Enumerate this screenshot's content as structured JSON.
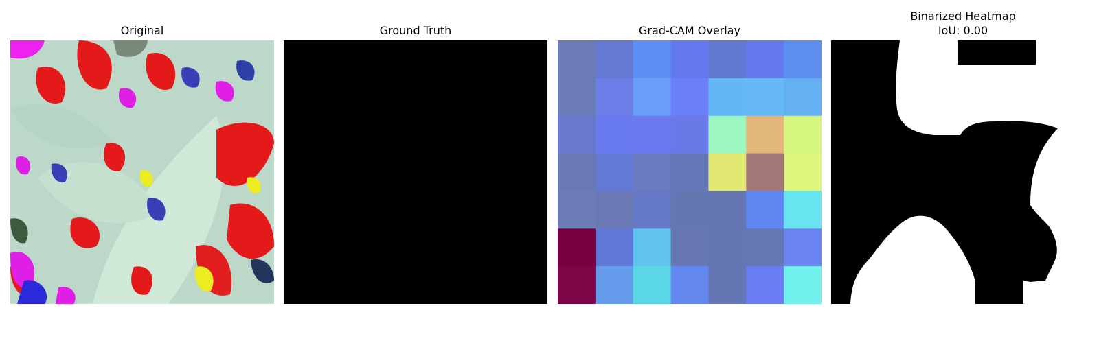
{
  "panels": {
    "original": {
      "title": "Original"
    },
    "ground_truth": {
      "title": "Ground Truth"
    },
    "overlay": {
      "title": "Grad-CAM Overlay"
    },
    "binarized": {
      "title": "Binarized Heatmap",
      "subtitle": "IoU: 0.00"
    }
  },
  "overlay_grid": {
    "rows": 7,
    "cols": 7,
    "colors": [
      [
        "#6a7bb5",
        "#6679d2",
        "#5d8ff4",
        "#6579ee",
        "#6378d0",
        "#6479ec",
        "#5d8ef2"
      ],
      [
        "#6a7bb5",
        "#6c7de7",
        "#6a9ef8",
        "#6b7ff8",
        "#63b7f5",
        "#67b8f6",
        "#64b0f3"
      ],
      [
        "#6978cb",
        "#6a7bef",
        "#6b7af1",
        "#6979e8",
        "#9cf7c3",
        "#e3b77a",
        "#d6f67f"
      ],
      [
        "#6a78b4",
        "#6478d5",
        "#6a7bc4",
        "#6677b9",
        "#e0e872",
        "#a37778",
        "#ddf57b"
      ],
      [
        "#6d7cb7",
        "#6a79b3",
        "#6578c8",
        "#6477b3",
        "#6477b3",
        "#6086f2",
        "#67e4f0"
      ],
      [
        "#780041",
        "#6079d8",
        "#60c2ef",
        "#6677b2",
        "#6477b3",
        "#6478b3",
        "#6a85f2"
      ],
      [
        "#7e0547",
        "#659ceb",
        "#5ad6e5",
        "#6488f0",
        "#6477b4",
        "#6a7df2",
        "#70f0ea"
      ]
    ]
  },
  "colors": {
    "ground_truth_fill": "#000000",
    "mask_background": "#000000",
    "mask_foreground": "#ffffff"
  }
}
